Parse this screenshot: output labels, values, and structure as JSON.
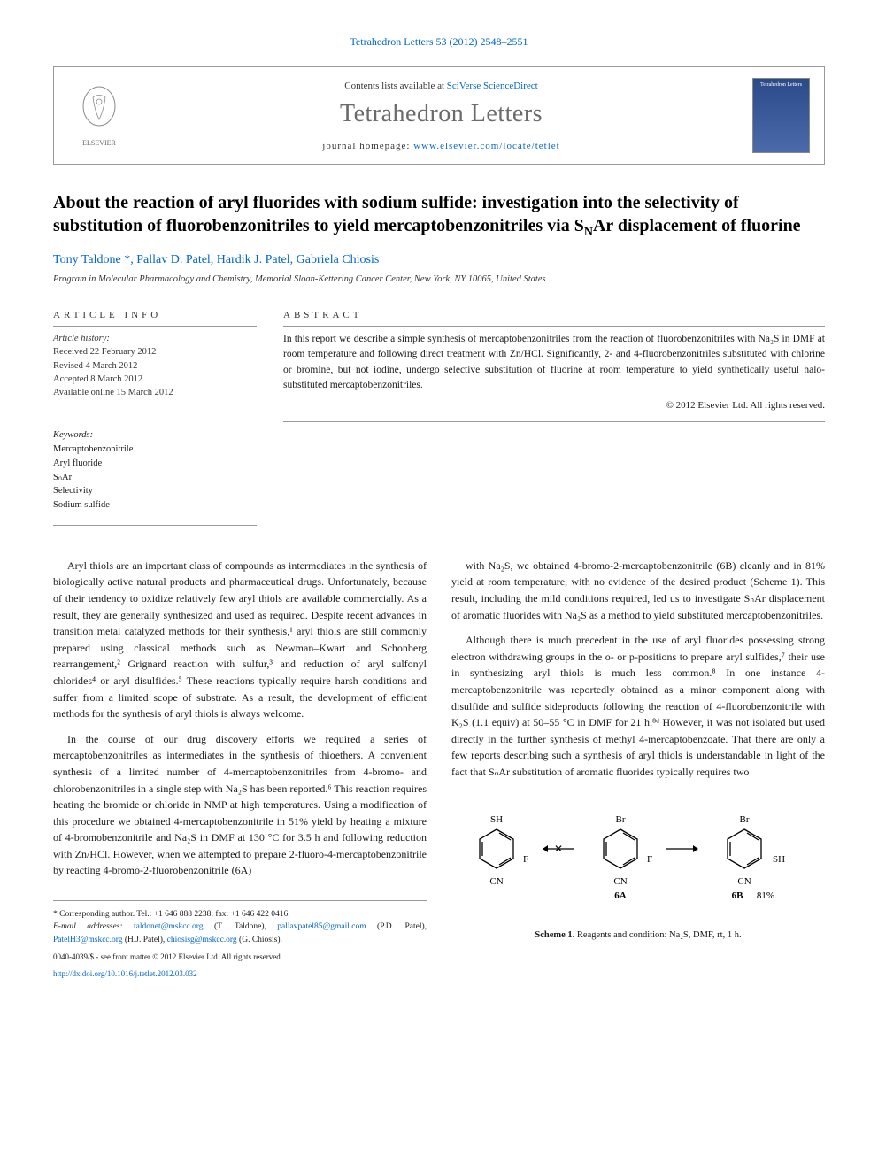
{
  "journal_ref": "Tetrahedron Letters 53 (2012) 2548–2551",
  "header": {
    "contents_prefix": "Contents lists available at ",
    "contents_link": "SciVerse ScienceDirect",
    "journal_title": "Tetrahedron Letters",
    "homepage_prefix": "journal homepage: ",
    "homepage_link": "www.elsevier.com/locate/tetlet",
    "publisher_name": "ELSEVIER",
    "cover_label": "Tetrahedron Letters"
  },
  "article": {
    "title_html": "About the reaction of aryl fluorides with sodium sulfide: investigation into the selectivity of substitution of fluorobenzonitriles to yield mercaptobenzonitriles via S<sub>N</sub>Ar displacement of fluorine",
    "authors": "Tony Taldone *, Pallav D. Patel, Hardik J. Patel, Gabriela Chiosis",
    "affiliation": "Program in Molecular Pharmacology and Chemistry, Memorial Sloan-Kettering Cancer Center, New York, NY 10065, United States"
  },
  "article_info": {
    "label": "ARTICLE INFO",
    "history_label": "Article history:",
    "received": "Received 22 February 2012",
    "revised": "Revised 4 March 2012",
    "accepted": "Accepted 8 March 2012",
    "online": "Available online 15 March 2012",
    "keywords_label": "Keywords:",
    "keywords": [
      "Mercaptobenzonitrile",
      "Aryl fluoride",
      "SₙAr",
      "Selectivity",
      "Sodium sulfide"
    ]
  },
  "abstract": {
    "label": "ABSTRACT",
    "text": "In this report we describe a simple synthesis of mercaptobenzonitriles from the reaction of fluorobenzonitriles with Na₂S in DMF at room temperature and following direct treatment with Zn/HCl. Significantly, 2- and 4-fluorobenzonitriles substituted with chlorine or bromine, but not iodine, undergo selective substitution of fluorine at room temperature to yield synthetically useful halo-substituted mercaptobenzonitriles.",
    "copyright": "© 2012 Elsevier Ltd. All rights reserved."
  },
  "body": {
    "col1": {
      "p1": "Aryl thiols are an important class of compounds as intermediates in the synthesis of biologically active natural products and pharmaceutical drugs. Unfortunately, because of their tendency to oxidize relatively few aryl thiols are available commercially. As a result, they are generally synthesized and used as required. Despite recent advances in transition metal catalyzed methods for their synthesis,¹ aryl thiols are still commonly prepared using classical methods such as Newman–Kwart and Schonberg rearrangement,² Grignard reaction with sulfur,³ and reduction of aryl sulfonyl chlorides⁴ or aryl disulfides.⁵ These reactions typically require harsh conditions and suffer from a limited scope of substrate. As a result, the development of efficient methods for the synthesis of aryl thiols is always welcome.",
      "p2": "In the course of our drug discovery efforts we required a series of mercaptobenzonitriles as intermediates in the synthesis of thioethers. A convenient synthesis of a limited number of 4-mercaptobenzonitriles from 4-bromo- and chlorobenzonitriles in a single step with Na₂S has been reported.⁶ This reaction requires heating the bromide or chloride in NMP at high temperatures. Using a modification of this procedure we obtained 4-mercaptobenzonitrile in 51% yield by heating a mixture of 4-bromobenzonitrile and Na₂S in DMF at 130 °C for 3.5 h and following reduction with Zn/HCl. However, when we attempted to prepare 2-fluoro-4-mercaptobenzonitrile by reacting 4-bromo-2-fluorobenzonitrile (6A)"
    },
    "col2": {
      "p1": "with Na₂S, we obtained 4-bromo-2-mercaptobenzonitrile (6B) cleanly and in 81% yield at room temperature, with no evidence of the desired product (Scheme 1). This result, including the mild conditions required, led us to investigate SₙAr displacement of aromatic fluorides with Na₂S as a method to yield substituted mercaptobenzonitriles.",
      "p2": "Although there is much precedent in the use of aryl fluorides possessing strong electron withdrawing groups in the o- or p-positions to prepare aryl sulfides,⁷ their use in synthesizing aryl thiols is much less common.⁸ In one instance 4-mercaptobenzonitrile was reportedly obtained as a minor component along with disulfide and sulfide sideproducts following the reaction of 4-fluorobenzonitrile with K₂S (1.1 equiv) at 50–55 °C in DMF for 21 h.⁸ᵈ However, it was not isolated but used directly in the further synthesis of methyl 4-mercaptobenzoate. That there are only a few reports describing such a synthesis of aryl thiols is understandable in light of the fact that SₙAr substitution of aromatic fluorides typically requires two"
    }
  },
  "scheme": {
    "structures": [
      {
        "label": "",
        "top_sub": "SH",
        "right_sub": "F",
        "bottom_sub": "CN",
        "left_sub": "",
        "br_pos": ""
      },
      {
        "label": "6A",
        "top_sub": "Br",
        "right_sub": "F",
        "bottom_sub": "CN",
        "left_sub": "",
        "br_pos": ""
      },
      {
        "label": "6B",
        "top_sub": "Br",
        "right_sub": "",
        "bottom_sub": "CN",
        "left_sub": "",
        "sh_sub": "SH",
        "yield": "81%"
      }
    ],
    "arrow1": "✕",
    "arrow2": "→",
    "caption_bold": "Scheme 1.",
    "caption_text": " Reagents and condition: Na₂S, DMF, rt, 1 h."
  },
  "footer": {
    "corr_label": "* Corresponding author. Tel.: +1 646 888 2238; fax: +1 646 422 0416.",
    "email_label": "E-mail addresses:",
    "emails": [
      {
        "addr": "taldonet@mskcc.org",
        "who": "(T. Taldone)"
      },
      {
        "addr": "pallavpatel85@gmail.com",
        "who": "(P.D. Patel)"
      },
      {
        "addr": "PatelH3@mskcc.org",
        "who": "(H.J. Patel)"
      },
      {
        "addr": "chiosisg@mskcc.org",
        "who": "(G. Chiosis)"
      }
    ],
    "issn_line": "0040-4039/$ - see front matter © 2012 Elsevier Ltd. All rights reserved.",
    "doi": "http://dx.doi.org/10.1016/j.tetlet.2012.03.032"
  },
  "colors": {
    "link": "#0066cc",
    "text": "#1a1a1a",
    "gray_title": "#6b6b6b",
    "border": "#999999",
    "cover_bg_top": "#2a4a8a",
    "cover_bg_bottom": "#4a6aaa"
  }
}
